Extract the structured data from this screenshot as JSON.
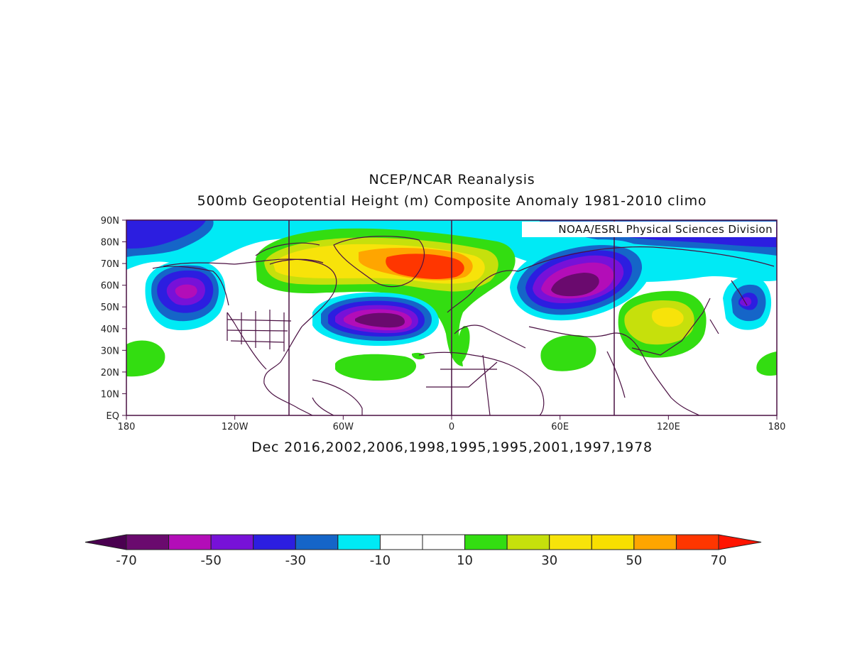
{
  "titles": {
    "line1": "NCEP/NCAR Reanalysis",
    "line2": "500mb Geopotential Height (m) Composite Anomaly 1981-2010 climo",
    "subtitle": "Dec 2016,2002,2006,1998,1995,1995,2001,1997,1978"
  },
  "credit": "NOAA/ESRL Physical Sciences Division",
  "map": {
    "lon_range": [
      0,
      360
    ],
    "lat_range": [
      0,
      90
    ],
    "y_ticks": [
      "90N",
      "80N",
      "70N",
      "60N",
      "50N",
      "40N",
      "30N",
      "20N",
      "10N",
      "EQ"
    ],
    "x_ticks": [
      "180",
      "120W",
      "60W",
      "0",
      "60E",
      "120E",
      "180"
    ],
    "anomaly_centers": [
      {
        "label": "positive",
        "lon": 355,
        "lat": 68,
        "value": 60
      },
      {
        "label": "negative",
        "lon": 315,
        "lat": 46,
        "value": -65
      },
      {
        "label": "negative",
        "lon": 60,
        "lat": 57,
        "value": -65
      },
      {
        "label": "negative",
        "lon": 215,
        "lat": 57,
        "value": -50
      },
      {
        "label": "positive",
        "lon": 118,
        "lat": 46,
        "value": 30
      },
      {
        "label": "negative",
        "lon": 165,
        "lat": 52,
        "value": -40
      }
    ]
  },
  "colorbar": {
    "labels": [
      "-70",
      "-50",
      "-30",
      "-10",
      "10",
      "30",
      "50",
      "70"
    ],
    "colors": [
      "#6a0a6e",
      "#b30db8",
      "#7711d8",
      "#2c1ee0",
      "#1565c8",
      "#00eaf5",
      "#ffffff",
      "#ffffff",
      "#33dd11",
      "#c6e00c",
      "#f7e30a",
      "#f8df00",
      "#ffa500",
      "#ff3600"
    ],
    "under_color": "#4a0050",
    "over_color": "#ff1400"
  }
}
